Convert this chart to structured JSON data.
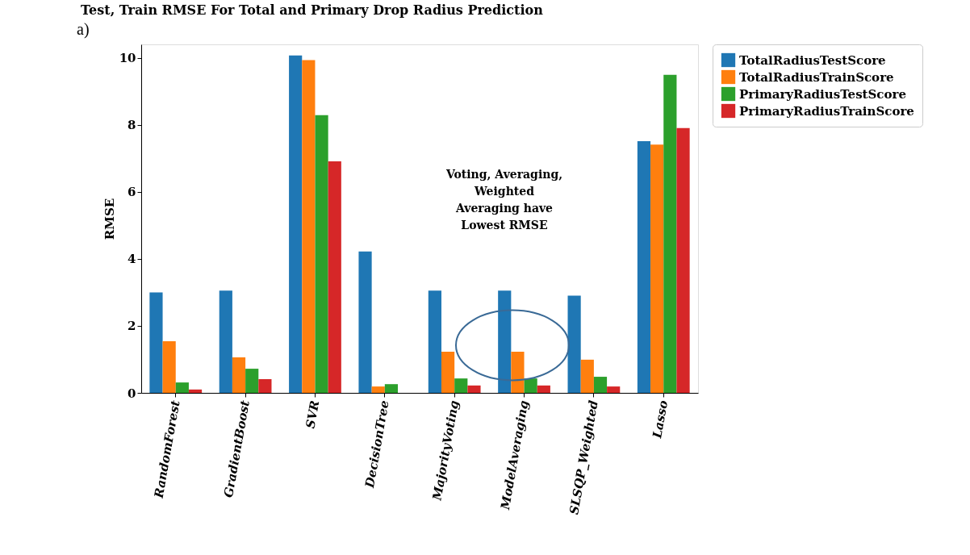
{
  "chart_data": {
    "type": "bar",
    "title": "Test, Train RMSE For Total and Primary Drop Radius Prediction",
    "ylabel": "RMSE",
    "categories": [
      "RandomForest",
      "GradientBoost",
      "SVR",
      "DecisionTree",
      "MajorityVoting",
      "ModelAveraging",
      "SLSQP_Weighted",
      "Lasso"
    ],
    "series": [
      {
        "name": "TotalRadiusTestScore",
        "color": "#1f77b4",
        "values": [
          3.0,
          3.05,
          10.07,
          4.22,
          3.05,
          3.05,
          2.9,
          7.51
        ]
      },
      {
        "name": "TotalRadiusTrainScore",
        "color": "#ff7f0e",
        "values": [
          1.54,
          1.06,
          9.93,
          0.19,
          1.23,
          1.23,
          0.99,
          7.41
        ]
      },
      {
        "name": "PrimaryRadiusTestScore",
        "color": "#2ca02c",
        "values": [
          0.31,
          0.72,
          8.29,
          0.26,
          0.43,
          0.43,
          0.48,
          9.49
        ]
      },
      {
        "name": "PrimaryRadiusTrainScore",
        "color": "#d62728",
        "values": [
          0.1,
          0.41,
          6.91,
          0.0,
          0.22,
          0.22,
          0.19,
          7.9
        ]
      }
    ],
    "ylim": [
      0,
      10.4
    ],
    "yticks": [
      0,
      2,
      4,
      6,
      8,
      10
    ],
    "grid": false,
    "legend": "right",
    "annotations": [
      "a)",
      "Voting, Averaging,\nWeighted\nAveraging have\nLowest RMSE"
    ]
  }
}
